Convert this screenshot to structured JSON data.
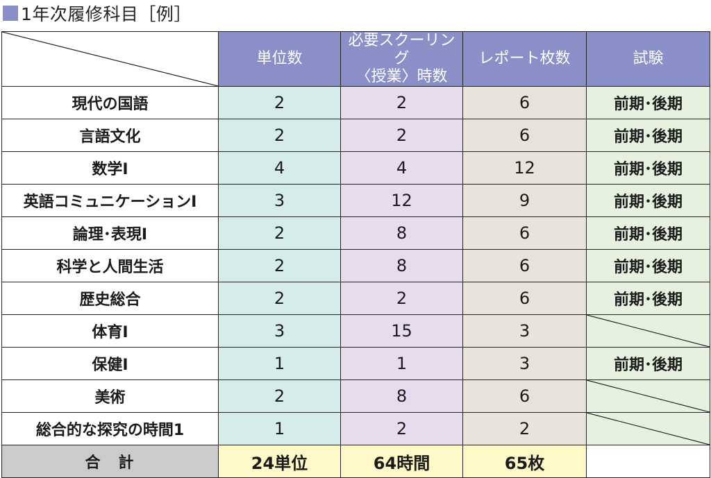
{
  "title": "1年次履修科目［例］",
  "headers": {
    "units": "単位数",
    "hours_line1": "必要スクーリング",
    "hours_line2": "〈授業〉時数",
    "reports": "レポート枚数",
    "exam": "試験"
  },
  "rows": [
    {
      "subject": "現代の国語",
      "units": "2",
      "hours": "2",
      "reports": "6",
      "exam": "前期･後期"
    },
    {
      "subject": "言語文化",
      "units": "2",
      "hours": "2",
      "reports": "6",
      "exam": "前期･後期"
    },
    {
      "subject": "数学Ⅰ",
      "units": "4",
      "hours": "4",
      "reports": "12",
      "exam": "前期･後期"
    },
    {
      "subject": "英語コミュニケーションⅠ",
      "units": "3",
      "hours": "12",
      "reports": "9",
      "exam": "前期･後期"
    },
    {
      "subject": "論理･表現Ⅰ",
      "units": "2",
      "hours": "8",
      "reports": "6",
      "exam": "前期･後期"
    },
    {
      "subject": "科学と人間生活",
      "units": "2",
      "hours": "8",
      "reports": "6",
      "exam": "前期･後期"
    },
    {
      "subject": "歴史総合",
      "units": "2",
      "hours": "2",
      "reports": "6",
      "exam": "前期･後期"
    },
    {
      "subject": "体育Ⅰ",
      "units": "3",
      "hours": "15",
      "reports": "3",
      "exam": ""
    },
    {
      "subject": "保健Ⅰ",
      "units": "1",
      "hours": "1",
      "reports": "3",
      "exam": "前期･後期"
    },
    {
      "subject": "美術",
      "units": "2",
      "hours": "8",
      "reports": "6",
      "exam": ""
    },
    {
      "subject": "総合的な探究の時間1",
      "units": "1",
      "hours": "2",
      "reports": "2",
      "exam": ""
    }
  ],
  "total": {
    "label": "合　計",
    "units": "24単位",
    "hours": "64時間",
    "reports": "65枚"
  },
  "colors": {
    "header": "#8a8fc8",
    "units_col": "#d5ecea",
    "hours_col": "#e7dcee",
    "reports_col": "#e8e4dc",
    "exam_col": "#e6f2df",
    "total_label": "#cbcbcb",
    "total_values": "#fff8c8"
  }
}
